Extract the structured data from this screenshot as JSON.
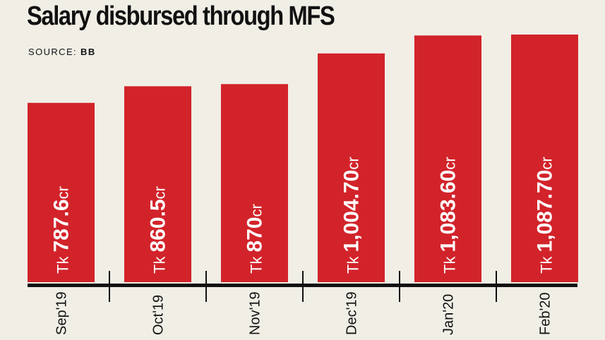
{
  "title": "Salary disbursed through MFS",
  "source": {
    "label": "SOURCE:",
    "value": "BB"
  },
  "colors": {
    "bar": "#d2232a",
    "background": "#f1eee6",
    "axis": "#111111",
    "bar_text": "#ffffff"
  },
  "chart_data": {
    "type": "bar",
    "title": "Salary disbursed through MFS",
    "categories": [
      "Sep'19",
      "Oct'19",
      "Nov'19",
      "Dec'19",
      "Jan'20",
      "Feb'20"
    ],
    "values": [
      787.6,
      860.5,
      870,
      1004.7,
      1083.6,
      1087.7
    ],
    "bar_labels": [
      {
        "prefix": "Tk ",
        "value": "787.6",
        "suffix": "cr"
      },
      {
        "prefix": "Tk ",
        "value": "860.5",
        "suffix": "cr"
      },
      {
        "prefix": "Tk ",
        "value": "870",
        "suffix": "cr"
      },
      {
        "prefix": "Tk ",
        "value": "1,004.70",
        "suffix": "cr"
      },
      {
        "prefix": "Tk ",
        "value": "1,083.60",
        "suffix": "cr"
      },
      {
        "prefix": "Tk ",
        "value": "1,087.70",
        "suffix": "cr"
      }
    ],
    "unit": "Tk crore",
    "xlabel": "",
    "ylabel": "",
    "ylim": [
      0,
      1100
    ],
    "grid": false,
    "legend": "none"
  }
}
